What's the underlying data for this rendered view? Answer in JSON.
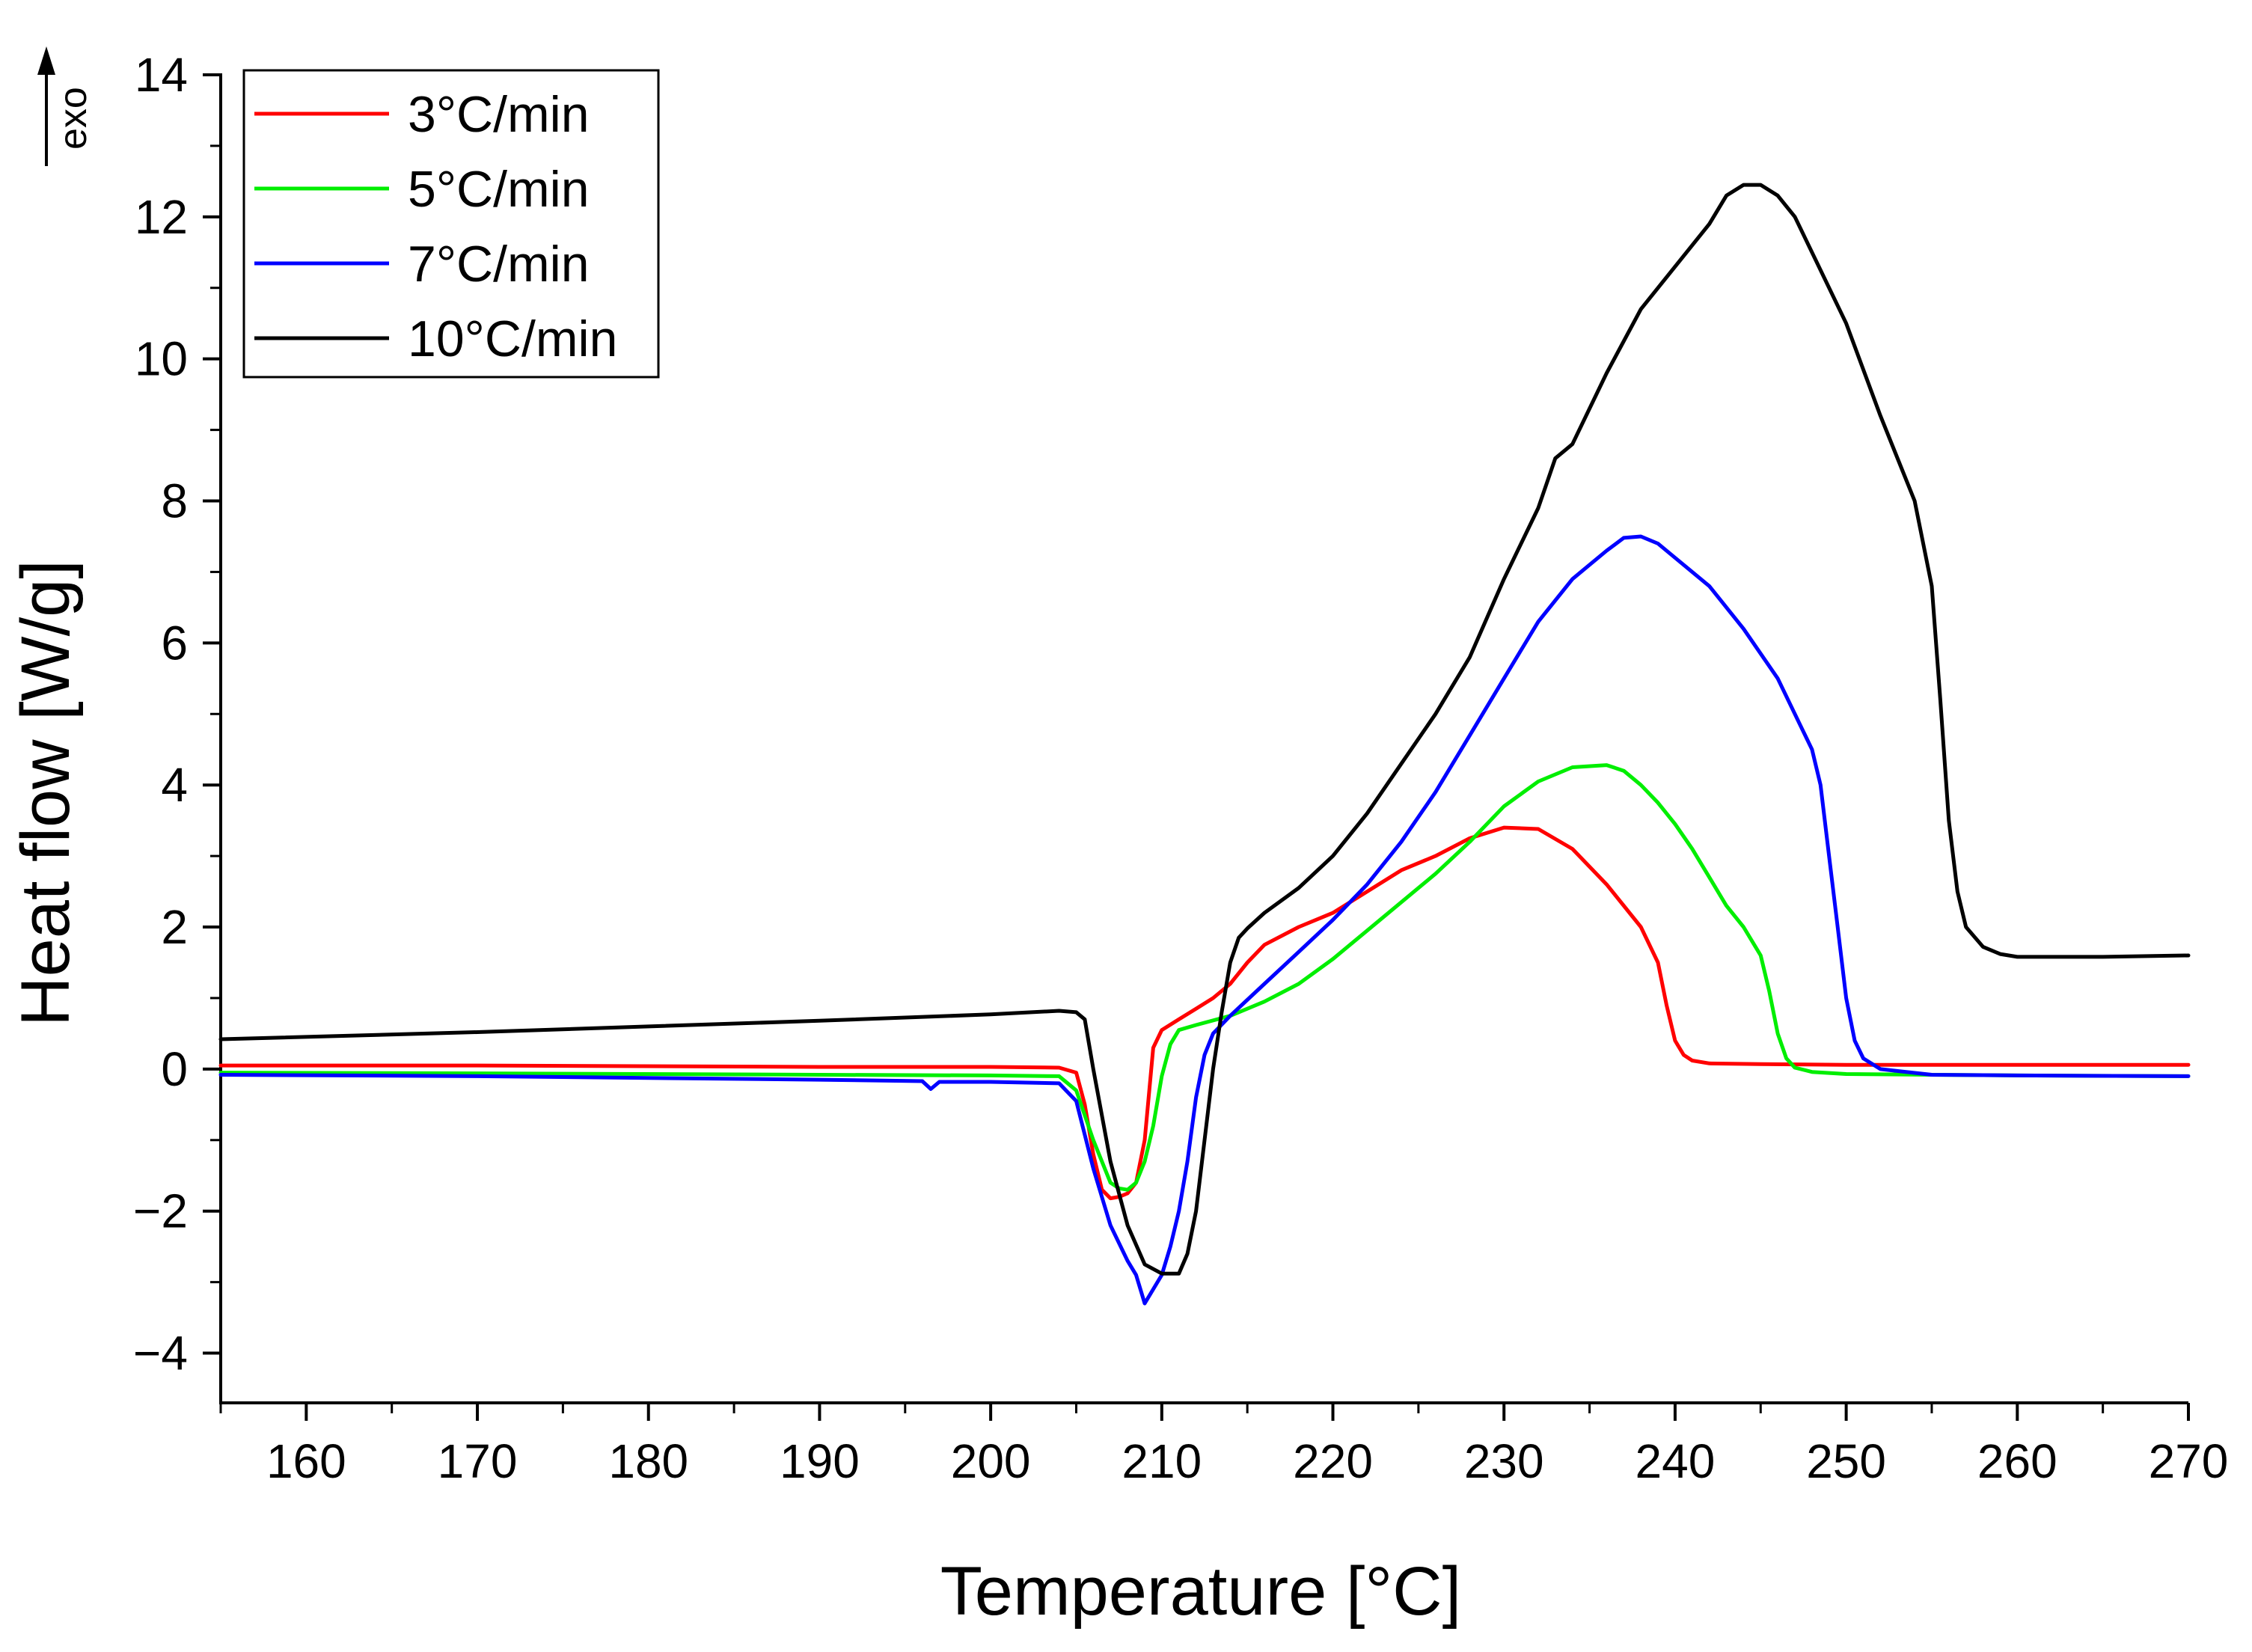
{
  "chart_data": {
    "type": "line",
    "title": "",
    "xlabel": "Temperature [°C]",
    "ylabel": "Heat flow [W/g]",
    "exo_label": "exo",
    "xlim": [
      155,
      270
    ],
    "ylim": [
      -4.7,
      14
    ],
    "x_ticks": [
      160,
      170,
      180,
      190,
      200,
      210,
      220,
      230,
      240,
      250,
      260,
      270
    ],
    "x_tick_labels": [
      "160",
      "170",
      "180",
      "190",
      "200",
      "210",
      "220",
      "230",
      "240",
      "250",
      "260",
      "270"
    ],
    "y_ticks": [
      -4,
      -2,
      0,
      2,
      4,
      6,
      8,
      10,
      12,
      14
    ],
    "y_tick_labels": [
      "−4",
      "−2",
      "0",
      "2",
      "4",
      "6",
      "8",
      "10",
      "12",
      "14"
    ],
    "grid": false,
    "legend": {
      "position": "top-left"
    },
    "series": [
      {
        "name": "3°C/min",
        "color": "#ff0000",
        "x": [
          155,
          170,
          190,
          200,
          204,
          205,
          205.5,
          206,
          206.5,
          207,
          207.5,
          208,
          208.5,
          209,
          209.5,
          210,
          211,
          212,
          213,
          214,
          215,
          216,
          218,
          220,
          222,
          224,
          226,
          228,
          230,
          232,
          234,
          236,
          238,
          239,
          239.5,
          240,
          240.5,
          241,
          242,
          245,
          250,
          260,
          270
        ],
        "y": [
          0.05,
          0.05,
          0.03,
          0.03,
          0.02,
          -0.05,
          -0.5,
          -1.2,
          -1.7,
          -1.82,
          -1.8,
          -1.75,
          -1.6,
          -1.0,
          0.3,
          0.55,
          0.7,
          0.85,
          1.0,
          1.2,
          1.5,
          1.75,
          2.0,
          2.2,
          2.5,
          2.8,
          3.0,
          3.25,
          3.4,
          3.38,
          3.1,
          2.6,
          2.0,
          1.5,
          0.9,
          0.4,
          0.2,
          0.12,
          0.08,
          0.07,
          0.06,
          0.06,
          0.06
        ]
      },
      {
        "name": "5°C/min",
        "color": "#00ee00",
        "x": [
          155,
          170,
          190,
          200,
          204,
          205,
          206,
          207,
          207.5,
          208,
          208.5,
          209,
          209.5,
          210,
          210.5,
          211,
          212,
          214,
          216,
          218,
          220,
          222,
          224,
          226,
          228,
          230,
          232,
          234,
          236,
          237,
          238,
          239,
          240,
          241,
          242,
          243,
          244,
          245,
          245.5,
          246,
          246.5,
          247,
          248,
          250,
          255,
          260,
          270
        ],
        "y": [
          -0.05,
          -0.06,
          -0.08,
          -0.09,
          -0.1,
          -0.3,
          -1.0,
          -1.6,
          -1.68,
          -1.7,
          -1.6,
          -1.3,
          -0.8,
          -0.1,
          0.35,
          0.55,
          0.62,
          0.75,
          0.95,
          1.2,
          1.55,
          1.95,
          2.35,
          2.75,
          3.2,
          3.7,
          4.05,
          4.25,
          4.28,
          4.2,
          4.0,
          3.75,
          3.45,
          3.1,
          2.7,
          2.3,
          2.0,
          1.6,
          1.1,
          0.5,
          0.15,
          0.02,
          -0.04,
          -0.07,
          -0.08,
          -0.09,
          -0.1
        ]
      },
      {
        "name": "7°C/min",
        "color": "#0000ff",
        "x": [
          155,
          170,
          190,
          196,
          196.5,
          197,
          200,
          204,
          205,
          206,
          207,
          208,
          208.5,
          209,
          209.5,
          210,
          210.5,
          211,
          211.5,
          212,
          212.5,
          213,
          214,
          216,
          218,
          220,
          222,
          224,
          226,
          228,
          230,
          232,
          234,
          236,
          237,
          238,
          239,
          240,
          242,
          244,
          246,
          247,
          248,
          248.5,
          249,
          249.5,
          250,
          250.5,
          251,
          252,
          255,
          260,
          270
        ],
        "y": [
          -0.08,
          -0.1,
          -0.15,
          -0.17,
          -0.28,
          -0.18,
          -0.18,
          -0.2,
          -0.45,
          -1.4,
          -2.2,
          -2.7,
          -2.9,
          -3.3,
          -3.1,
          -2.9,
          -2.5,
          -2.0,
          -1.3,
          -0.4,
          0.2,
          0.5,
          0.75,
          1.2,
          1.65,
          2.1,
          2.6,
          3.2,
          3.9,
          4.7,
          5.5,
          6.3,
          6.9,
          7.3,
          7.48,
          7.5,
          7.4,
          7.2,
          6.8,
          6.2,
          5.5,
          5.0,
          4.5,
          4.0,
          3.0,
          2.0,
          1.0,
          0.4,
          0.15,
          0.0,
          -0.08,
          -0.09,
          -0.1
        ]
      },
      {
        "name": "10°C/min",
        "color": "#000000",
        "x": [
          155,
          170,
          180,
          190,
          200,
          204,
          205,
          205.5,
          206,
          207,
          208,
          209,
          210,
          211,
          211.5,
          212,
          212.5,
          213,
          213.5,
          214,
          214.5,
          215,
          216,
          218,
          220,
          222,
          224,
          226,
          228,
          230,
          232,
          233,
          233.5,
          234,
          236,
          238,
          240,
          242,
          243,
          244,
          245,
          246,
          247,
          248,
          250,
          252,
          254,
          255,
          255.5,
          256,
          256.5,
          257,
          258,
          259,
          260,
          265,
          270
        ],
        "y": [
          0.42,
          0.52,
          0.6,
          0.68,
          0.77,
          0.82,
          0.8,
          0.7,
          0.0,
          -1.3,
          -2.2,
          -2.75,
          -2.88,
          -2.88,
          -2.6,
          -2.0,
          -1.0,
          0.0,
          0.8,
          1.5,
          1.85,
          1.98,
          2.2,
          2.55,
          3.0,
          3.6,
          4.3,
          5.0,
          5.8,
          6.9,
          7.9,
          8.6,
          8.7,
          8.8,
          9.8,
          10.7,
          11.3,
          11.9,
          12.3,
          12.45,
          12.45,
          12.3,
          12.0,
          11.5,
          10.5,
          9.2,
          8.0,
          6.8,
          5.2,
          3.5,
          2.5,
          2.0,
          1.72,
          1.62,
          1.58,
          1.58,
          1.6
        ]
      }
    ]
  }
}
